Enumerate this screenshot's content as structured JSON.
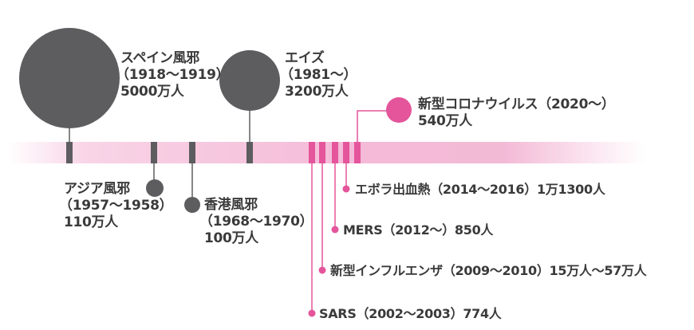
{
  "colors": {
    "gray": "#5d5d5f",
    "pink": "#e4559b",
    "band_pink": "#f3b2d3",
    "text": "#3a3a3a"
  },
  "events": {
    "spanish_flu": {
      "name": "スペイン風邪",
      "period": "（1918〜1919）",
      "deaths": "5000万人"
    },
    "asian_flu": {
      "name": "アジア風邪",
      "period": "（1957〜1958）",
      "deaths": "110万人"
    },
    "hong_kong_flu": {
      "name": "香港風邪",
      "period": "（1968〜1970）",
      "deaths": "100万人"
    },
    "aids": {
      "name": "エイズ",
      "period": "（1981〜）",
      "deaths": "3200万人"
    },
    "sars": {
      "text": "SARS（2002〜2003）774人"
    },
    "new_flu": {
      "text": "新型インフルエンザ（2009〜2010）15万人〜57万人"
    },
    "mers": {
      "text": "MERS（2012〜）850人"
    },
    "ebola": {
      "text": "エボラ出血熱（2014〜2016）1万1300人"
    },
    "covid": {
      "name": "新型コロナウイルス（2020〜）",
      "deaths": "540万人"
    }
  }
}
